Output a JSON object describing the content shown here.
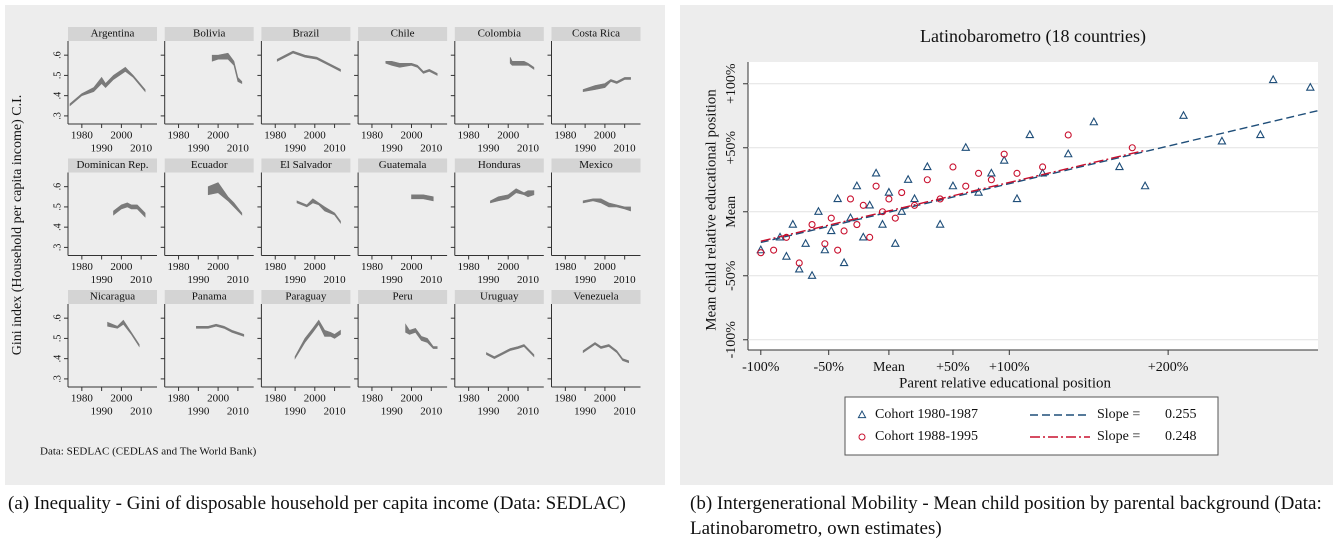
{
  "chart_data": [
    {
      "type": "band",
      "ylabel": "Gini index (Household per capita income) C.I.",
      "note": "Data: SEDLAC (CEDLAS and The World Bank)",
      "caption": "(a) Inequality - Gini of disposable household per capita income (Data: SEDLAC)",
      "color": "#7a7a7a",
      "xlim": [
        1973,
        2018
      ],
      "xticks": [
        1980,
        1990,
        2000,
        2010
      ],
      "ylim": [
        0.26,
        0.67
      ],
      "yticks": [
        {
          "value": 0.3,
          "label": ".3"
        },
        {
          "value": 0.4,
          "label": ".4"
        },
        {
          "value": 0.5,
          "label": ".5"
        },
        {
          "value": 0.6,
          "label": ".6"
        }
      ],
      "panels": [
        {
          "name": "Argentina",
          "x": [
            1974,
            1980,
            1986,
            1990,
            1992,
            1996,
            2002,
            2006,
            2012
          ],
          "lower": [
            0.35,
            0.4,
            0.42,
            0.46,
            0.44,
            0.48,
            0.52,
            0.49,
            0.42
          ],
          "upper": [
            0.36,
            0.41,
            0.44,
            0.49,
            0.46,
            0.5,
            0.54,
            0.5,
            0.43
          ]
        },
        {
          "name": "Bolivia",
          "x": [
            1997,
            2000,
            2005,
            2008,
            2010,
            2012
          ],
          "lower": [
            0.57,
            0.58,
            0.58,
            0.55,
            0.47,
            0.46
          ],
          "upper": [
            0.6,
            0.6,
            0.61,
            0.57,
            0.49,
            0.47
          ]
        },
        {
          "name": "Brazil",
          "x": [
            1981,
            1985,
            1989,
            1995,
            2001,
            2007,
            2013
          ],
          "lower": [
            0.57,
            0.59,
            0.61,
            0.59,
            0.58,
            0.55,
            0.52
          ],
          "upper": [
            0.58,
            0.6,
            0.62,
            0.6,
            0.59,
            0.56,
            0.53
          ]
        },
        {
          "name": "Chile",
          "x": [
            1987,
            1990,
            1994,
            2000,
            2003,
            2006,
            2009,
            2013
          ],
          "lower": [
            0.56,
            0.55,
            0.54,
            0.55,
            0.54,
            0.51,
            0.52,
            0.5
          ],
          "upper": [
            0.57,
            0.57,
            0.56,
            0.56,
            0.55,
            0.52,
            0.53,
            0.51
          ]
        },
        {
          "name": "Colombia",
          "x": [
            2001,
            2002,
            2008,
            2010,
            2013
          ],
          "lower": [
            0.56,
            0.55,
            0.55,
            0.55,
            0.53
          ],
          "upper": [
            0.59,
            0.57,
            0.57,
            0.56,
            0.54
          ]
        },
        {
          "name": "Costa Rica",
          "x": [
            1989,
            1995,
            2000,
            2003,
            2006,
            2010,
            2013
          ],
          "lower": [
            0.42,
            0.43,
            0.44,
            0.47,
            0.46,
            0.48,
            0.48
          ],
          "upper": [
            0.43,
            0.45,
            0.46,
            0.48,
            0.47,
            0.49,
            0.49
          ]
        },
        {
          "name": "Dominican Rep.",
          "x": [
            1996,
            2000,
            2003,
            2005,
            2008,
            2012
          ],
          "lower": [
            0.46,
            0.49,
            0.5,
            0.49,
            0.49,
            0.45
          ],
          "upper": [
            0.48,
            0.51,
            0.52,
            0.51,
            0.51,
            0.47
          ]
        },
        {
          "name": "Ecuador",
          "x": [
            1995,
            2000,
            2005,
            2008,
            2012
          ],
          "lower": [
            0.56,
            0.57,
            0.53,
            0.5,
            0.46
          ],
          "upper": [
            0.6,
            0.62,
            0.55,
            0.52,
            0.47
          ]
        },
        {
          "name": "El Salvador",
          "x": [
            1991,
            1996,
            1999,
            2002,
            2005,
            2010,
            2013
          ],
          "lower": [
            0.52,
            0.5,
            0.52,
            0.51,
            0.48,
            0.46,
            0.42
          ],
          "upper": [
            0.53,
            0.51,
            0.54,
            0.52,
            0.5,
            0.47,
            0.43
          ]
        },
        {
          "name": "Guatemala",
          "x": [
            2000,
            2006,
            2011
          ],
          "lower": [
            0.54,
            0.54,
            0.53
          ],
          "upper": [
            0.56,
            0.56,
            0.55
          ]
        },
        {
          "name": "Honduras",
          "x": [
            1991,
            1995,
            2000,
            2004,
            2008,
            2010,
            2013
          ],
          "lower": [
            0.52,
            0.53,
            0.54,
            0.57,
            0.56,
            0.55,
            0.56
          ],
          "upper": [
            0.53,
            0.55,
            0.56,
            0.59,
            0.57,
            0.58,
            0.58
          ]
        },
        {
          "name": "Mexico",
          "x": [
            1989,
            1994,
            1998,
            2002,
            2006,
            2010,
            2013
          ],
          "lower": [
            0.52,
            0.53,
            0.52,
            0.5,
            0.5,
            0.49,
            0.48
          ],
          "upper": [
            0.53,
            0.54,
            0.54,
            0.52,
            0.51,
            0.5,
            0.5
          ]
        },
        {
          "name": "Nicaragua",
          "x": [
            1993,
            1998,
            2001,
            2005,
            2009
          ],
          "lower": [
            0.56,
            0.55,
            0.57,
            0.52,
            0.46
          ],
          "upper": [
            0.58,
            0.56,
            0.59,
            0.53,
            0.47
          ]
        },
        {
          "name": "Panama",
          "x": [
            1989,
            1995,
            1999,
            2003,
            2007,
            2010,
            2013
          ],
          "lower": [
            0.55,
            0.55,
            0.56,
            0.55,
            0.53,
            0.52,
            0.51
          ],
          "upper": [
            0.56,
            0.56,
            0.57,
            0.56,
            0.54,
            0.53,
            0.52
          ]
        },
        {
          "name": "Paraguay",
          "x": [
            1990,
            1995,
            1999,
            2002,
            2005,
            2008,
            2010,
            2013
          ],
          "lower": [
            0.4,
            0.48,
            0.53,
            0.57,
            0.51,
            0.51,
            0.5,
            0.52
          ],
          "upper": [
            0.41,
            0.5,
            0.55,
            0.59,
            0.54,
            0.53,
            0.52,
            0.54
          ]
        },
        {
          "name": "Peru",
          "x": [
            1997,
            1999,
            2002,
            2005,
            2008,
            2011,
            2013
          ],
          "lower": [
            0.53,
            0.52,
            0.53,
            0.49,
            0.48,
            0.45,
            0.45
          ],
          "upper": [
            0.57,
            0.54,
            0.55,
            0.51,
            0.5,
            0.46,
            0.46
          ]
        },
        {
          "name": "Uruguay",
          "x": [
            1989,
            1993,
            1997,
            2001,
            2005,
            2008,
            2013
          ],
          "lower": [
            0.42,
            0.4,
            0.42,
            0.44,
            0.45,
            0.46,
            0.41
          ],
          "upper": [
            0.43,
            0.41,
            0.43,
            0.45,
            0.46,
            0.47,
            0.42
          ]
        },
        {
          "name": "Venezuela",
          "x": [
            1989,
            1995,
            1998,
            2002,
            2006,
            2009,
            2012
          ],
          "lower": [
            0.43,
            0.47,
            0.45,
            0.46,
            0.43,
            0.39,
            0.38
          ],
          "upper": [
            0.44,
            0.48,
            0.46,
            0.47,
            0.44,
            0.4,
            0.39
          ]
        }
      ]
    },
    {
      "type": "scatter",
      "title": "Latinobarometro (18 countries)",
      "xlabel": "Parent relative educational position",
      "ylabel": "Mean child relative educational position",
      "caption": "(b) Intergenerational Mobility - Mean child position by parental background (Data: Latinobarometro, own estimates)",
      "xlim": [
        -1.1,
        3.35
      ],
      "ylim": [
        -1.08,
        1.17
      ],
      "xticks": [
        {
          "value": -1,
          "label": "-100%"
        },
        {
          "value": -0.47,
          "label": "-50%"
        },
        {
          "value": 0,
          "label": "Mean"
        },
        {
          "value": 0.5,
          "label": "+50%"
        },
        {
          "value": 0.94,
          "label": "+100%"
        },
        {
          "value": 2.18,
          "label": "+200%"
        }
      ],
      "yticks": [
        {
          "value": -1,
          "label": "-100%"
        },
        {
          "value": -0.5,
          "label": "-50%"
        },
        {
          "value": 0,
          "label": "Mean"
        },
        {
          "value": 0.5,
          "label": "+50%"
        },
        {
          "value": 1,
          "label": "+100%"
        }
      ],
      "slope_label": "Slope =",
      "series": [
        {
          "name": "Cohort 1980-1987",
          "color": "#1f4e79",
          "marker": "triangle",
          "dash": "8 4",
          "slope": 0.255,
          "x": [
            -1,
            -0.85,
            -0.8,
            -0.75,
            -0.7,
            -0.65,
            -0.6,
            -0.55,
            -0.5,
            -0.45,
            -0.4,
            -0.35,
            -0.3,
            -0.25,
            -0.2,
            -0.15,
            -0.1,
            -0.05,
            0,
            0.05,
            0.1,
            0.15,
            0.2,
            0.3,
            0.4,
            0.5,
            0.6,
            0.7,
            0.8,
            0.9,
            1.0,
            1.1,
            1.2,
            1.4,
            1.6,
            1.8,
            2.0,
            2.3,
            2.6,
            2.9,
            3.0,
            3.29
          ],
          "values": [
            -0.3,
            -0.2,
            -0.35,
            -0.1,
            -0.45,
            -0.25,
            -0.5,
            0.0,
            -0.3,
            -0.15,
            0.1,
            -0.4,
            -0.05,
            0.2,
            -0.2,
            0.05,
            0.3,
            -0.1,
            0.15,
            -0.25,
            0.0,
            0.25,
            0.1,
            0.35,
            -0.1,
            0.2,
            0.5,
            0.15,
            0.3,
            0.4,
            0.1,
            0.6,
            0.3,
            0.45,
            0.7,
            0.35,
            0.2,
            0.75,
            0.55,
            0.6,
            1.03,
            0.97
          ],
          "fit_x": [
            -1,
            3.35
          ],
          "fit_y": [
            -0.24,
            0.79
          ]
        },
        {
          "name": "Cohort 1988-1995",
          "color": "#c8102e",
          "marker": "circle",
          "dash": "10 3 2 3",
          "slope": 0.248,
          "x": [
            -1,
            -0.9,
            -0.8,
            -0.7,
            -0.6,
            -0.5,
            -0.45,
            -0.4,
            -0.35,
            -0.3,
            -0.25,
            -0.2,
            -0.15,
            -0.1,
            -0.05,
            0,
            0.05,
            0.1,
            0.2,
            0.3,
            0.4,
            0.5,
            0.6,
            0.7,
            0.8,
            0.9,
            1.0,
            1.2,
            1.4,
            1.9
          ],
          "values": [
            -0.32,
            -0.3,
            -0.2,
            -0.4,
            -0.1,
            -0.25,
            -0.05,
            -0.3,
            -0.15,
            0.1,
            -0.1,
            0.05,
            -0.2,
            0.2,
            0.0,
            0.1,
            -0.05,
            0.15,
            0.05,
            0.25,
            0.1,
            0.35,
            0.2,
            0.3,
            0.25,
            0.45,
            0.3,
            0.35,
            0.6,
            0.5
          ],
          "fit_x": [
            -1,
            2.0
          ],
          "fit_y": [
            -0.23,
            0.48
          ]
        }
      ]
    }
  ]
}
